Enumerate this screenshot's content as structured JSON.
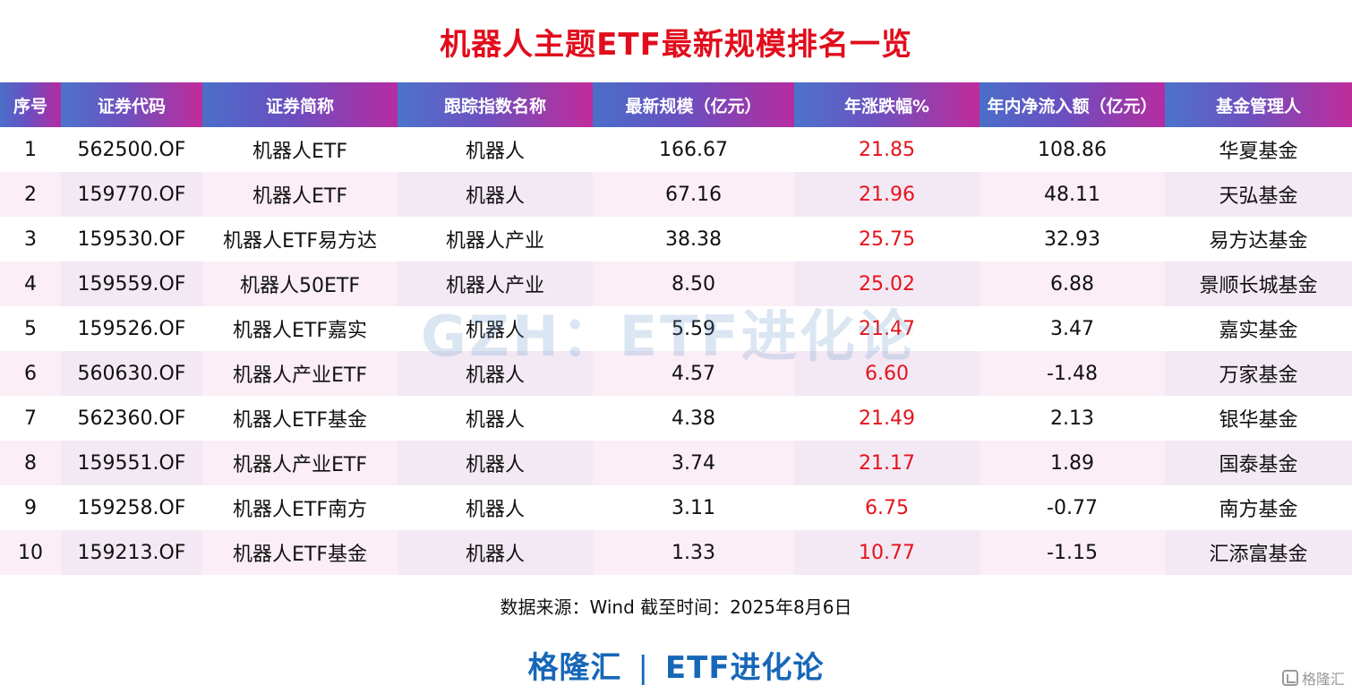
{
  "title": "机器人主题ETF最新规模排名一览",
  "columns": [
    "序号",
    "证券代码",
    "证券简称",
    "跟踪指数名称",
    "最新规模（亿元）",
    "年涨跌幅%",
    "年内净流入额（亿元）",
    "基金管理人"
  ],
  "rows": [
    {
      "rank": "1",
      "code": "562500.OF",
      "name": "机器人ETF",
      "index": "机器人",
      "scale": "166.67",
      "change": "21.85",
      "inflow": "108.86",
      "manager": "华夏基金"
    },
    {
      "rank": "2",
      "code": "159770.OF",
      "name": "机器人ETF",
      "index": "机器人",
      "scale": "67.16",
      "change": "21.96",
      "inflow": "48.11",
      "manager": "天弘基金"
    },
    {
      "rank": "3",
      "code": "159530.OF",
      "name": "机器人ETF易方达",
      "index": "机器人产业",
      "scale": "38.38",
      "change": "25.75",
      "inflow": "32.93",
      "manager": "易方达基金"
    },
    {
      "rank": "4",
      "code": "159559.OF",
      "name": "机器人50ETF",
      "index": "机器人产业",
      "scale": "8.50",
      "change": "25.02",
      "inflow": "6.88",
      "manager": "景顺长城基金"
    },
    {
      "rank": "5",
      "code": "159526.OF",
      "name": "机器人ETF嘉实",
      "index": "机器人",
      "scale": "5.59",
      "change": "21.47",
      "inflow": "3.47",
      "manager": "嘉实基金"
    },
    {
      "rank": "6",
      "code": "560630.OF",
      "name": "机器人产业ETF",
      "index": "机器人",
      "scale": "4.57",
      "change": "6.60",
      "inflow": "-1.48",
      "manager": "万家基金"
    },
    {
      "rank": "7",
      "code": "562360.OF",
      "name": "机器人ETF基金",
      "index": "机器人",
      "scale": "4.38",
      "change": "21.49",
      "inflow": "2.13",
      "manager": "银华基金"
    },
    {
      "rank": "8",
      "code": "159551.OF",
      "name": "机器人产业ETF",
      "index": "机器人",
      "scale": "3.74",
      "change": "21.17",
      "inflow": "1.89",
      "manager": "国泰基金"
    },
    {
      "rank": "9",
      "code": "159258.OF",
      "name": "机器人ETF南方",
      "index": "机器人",
      "scale": "3.11",
      "change": "6.75",
      "inflow": "-0.77",
      "manager": "南方基金"
    },
    {
      "rank": "10",
      "code": "159213.OF",
      "name": "机器人ETF基金",
      "index": "机器人",
      "scale": "1.33",
      "change": "10.77",
      "inflow": "-1.15",
      "manager": "汇添富基金"
    }
  ],
  "watermark": "GZH：ETF进化论",
  "source": "数据来源：Wind 截至时间：2025年8月6日",
  "footer": {
    "left": "格隆汇",
    "separator": "|",
    "right": "ETF进化论"
  },
  "corner_logo": "格隆汇",
  "colors": {
    "title": "#e10d1c",
    "positive_change": "#e4141c",
    "footer": "#1767b8"
  }
}
